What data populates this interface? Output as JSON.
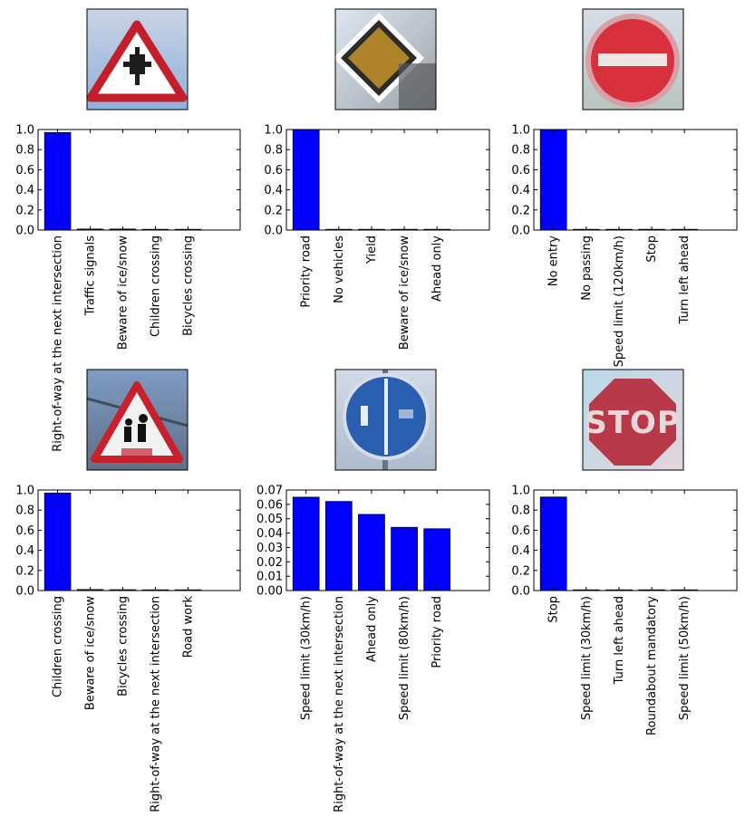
{
  "colors": {
    "bar": "#0000ff",
    "edge": "#000000",
    "background": "#ffffff"
  },
  "chart_data": [
    {
      "type": "bar",
      "sign_image": "red triangle sign with crossroads symbol",
      "categories": [
        "Right-of-way at the next intersection",
        "Traffic signals",
        "Beware of ice/snow",
        "Children crossing",
        "Bicycles crossing"
      ],
      "values": [
        0.97,
        0.01,
        0.01,
        0.005,
        0.003
      ],
      "ylim": [
        0,
        1.0
      ],
      "yticks": [
        "0.0",
        "0.2",
        "0.4",
        "0.6",
        "0.8",
        "1.0"
      ]
    },
    {
      "type": "bar",
      "sign_image": "yellow diamond priority road sign",
      "categories": [
        "Priority road",
        "No vehicles",
        "Yield",
        "Beware of ice/snow",
        "Ahead only"
      ],
      "values": [
        1.0,
        0.002,
        0.001,
        0.001,
        0.001
      ],
      "ylim": [
        0,
        1.0
      ],
      "yticks": [
        "0.0",
        "0.2",
        "0.4",
        "0.6",
        "0.8",
        "1.0"
      ]
    },
    {
      "type": "bar",
      "sign_image": "red circle with white bar, no entry sign",
      "categories": [
        "No entry",
        "No passing",
        "Speed limit (120km/h)",
        "Stop",
        "Turn left ahead"
      ],
      "values": [
        1.0,
        0.002,
        0.001,
        0.001,
        0.001
      ],
      "ylim": [
        0,
        1.0
      ],
      "yticks": [
        "0.0",
        "0.2",
        "0.4",
        "0.6",
        "0.8",
        "1.0"
      ]
    },
    {
      "type": "bar",
      "sign_image": "red triangle sign with children symbol",
      "categories": [
        "Children crossing",
        "Beware of ice/snow",
        "Bicycles crossing",
        "Right-of-way at the next intersection",
        "Road work"
      ],
      "values": [
        0.97,
        0.01,
        0.008,
        0.006,
        0.004
      ],
      "ylim": [
        0,
        1.0
      ],
      "yticks": [
        "0.0",
        "0.2",
        "0.4",
        "0.6",
        "0.8",
        "1.0"
      ]
    },
    {
      "type": "bar",
      "sign_image": "blue circle shared pedestrian and bicycle path sign",
      "categories": [
        "Speed limit (30km/h)",
        "Right-of-way at the next intersection",
        "Ahead only",
        "Speed limit (80km/h)",
        "Priority road"
      ],
      "values": [
        0.065,
        0.062,
        0.053,
        0.044,
        0.043
      ],
      "ylim": [
        0,
        0.07
      ],
      "yticks": [
        "0.00",
        "0.01",
        "0.02",
        "0.03",
        "0.04",
        "0.05",
        "0.06",
        "0.07"
      ]
    },
    {
      "type": "bar",
      "sign_image": "red octagon STOP sign",
      "sign_text": "STOP",
      "categories": [
        "Stop",
        "Speed limit (30km/h)",
        "Turn left ahead",
        "Roundabout mandatory",
        "Speed limit (50km/h)"
      ],
      "values": [
        0.93,
        0.006,
        0.005,
        0.004,
        0.003
      ],
      "ylim": [
        0,
        1.0
      ],
      "yticks": [
        "0.0",
        "0.2",
        "0.4",
        "0.6",
        "0.8",
        "1.0"
      ]
    }
  ]
}
